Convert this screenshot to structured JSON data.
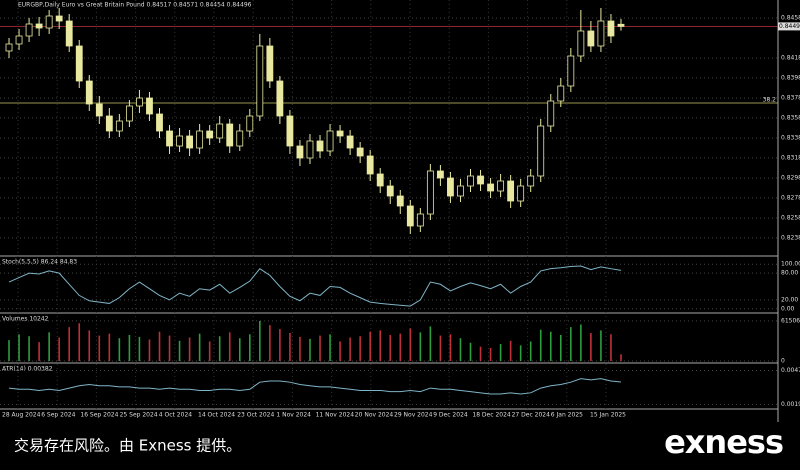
{
  "chart_data": {
    "type": "candlestick",
    "title": "EURGBP,Daily Euro vs Great Britain Pound 0.84517 0.84571 0.84454 0.84496",
    "candles": [
      [
        0.8425,
        0.8438,
        0.8418,
        0.8432
      ],
      [
        0.8432,
        0.8447,
        0.8426,
        0.844
      ],
      [
        0.844,
        0.8458,
        0.8434,
        0.8452
      ],
      [
        0.8452,
        0.8459,
        0.844,
        0.8448
      ],
      [
        0.8448,
        0.8466,
        0.8442,
        0.846
      ],
      [
        0.846,
        0.8468,
        0.8447,
        0.8455
      ],
      [
        0.8455,
        0.8462,
        0.8424,
        0.843
      ],
      [
        0.843,
        0.8436,
        0.8388,
        0.8395
      ],
      [
        0.8395,
        0.8401,
        0.8365,
        0.8372
      ],
      [
        0.8372,
        0.838,
        0.8352,
        0.836
      ],
      [
        0.836,
        0.8368,
        0.8338,
        0.8345
      ],
      [
        0.8345,
        0.8362,
        0.8339,
        0.8355
      ],
      [
        0.8355,
        0.8376,
        0.8349,
        0.837
      ],
      [
        0.837,
        0.8386,
        0.8363,
        0.8378
      ],
      [
        0.8378,
        0.8384,
        0.8355,
        0.8362
      ],
      [
        0.8362,
        0.8368,
        0.8338,
        0.8345
      ],
      [
        0.8345,
        0.8351,
        0.8322,
        0.833
      ],
      [
        0.833,
        0.8348,
        0.8324,
        0.834
      ],
      [
        0.834,
        0.8346,
        0.832,
        0.8328
      ],
      [
        0.8328,
        0.8352,
        0.8322,
        0.8345
      ],
      [
        0.8345,
        0.8351,
        0.8331,
        0.8338
      ],
      [
        0.8338,
        0.836,
        0.8333,
        0.8352
      ],
      [
        0.8352,
        0.8357,
        0.8323,
        0.833
      ],
      [
        0.833,
        0.8352,
        0.8325,
        0.8345
      ],
      [
        0.8345,
        0.8367,
        0.8339,
        0.836
      ],
      [
        0.836,
        0.8442,
        0.8355,
        0.843
      ],
      [
        0.843,
        0.8438,
        0.8388,
        0.8395
      ],
      [
        0.8395,
        0.84,
        0.8352,
        0.836
      ],
      [
        0.836,
        0.8366,
        0.8322,
        0.833
      ],
      [
        0.833,
        0.8336,
        0.831,
        0.8318
      ],
      [
        0.8318,
        0.8342,
        0.8312,
        0.8335
      ],
      [
        0.8335,
        0.8341,
        0.8318,
        0.8325
      ],
      [
        0.8325,
        0.8352,
        0.832,
        0.8345
      ],
      [
        0.8345,
        0.8351,
        0.8333,
        0.834
      ],
      [
        0.834,
        0.8346,
        0.8321,
        0.8328
      ],
      [
        0.8328,
        0.8334,
        0.8313,
        0.832
      ],
      [
        0.832,
        0.8326,
        0.8295,
        0.8302
      ],
      [
        0.8302,
        0.8308,
        0.8283,
        0.829
      ],
      [
        0.829,
        0.8296,
        0.8272,
        0.828
      ],
      [
        0.828,
        0.8286,
        0.8262,
        0.827
      ],
      [
        0.827,
        0.8276,
        0.8242,
        0.825
      ],
      [
        0.825,
        0.8268,
        0.8244,
        0.8262
      ],
      [
        0.8262,
        0.8312,
        0.8256,
        0.8305
      ],
      [
        0.8305,
        0.8311,
        0.829,
        0.8298
      ],
      [
        0.8298,
        0.8304,
        0.8273,
        0.828
      ],
      [
        0.828,
        0.8297,
        0.8274,
        0.829
      ],
      [
        0.829,
        0.8307,
        0.8284,
        0.83
      ],
      [
        0.83,
        0.8306,
        0.8285,
        0.8292
      ],
      [
        0.8292,
        0.8298,
        0.8278,
        0.8285
      ],
      [
        0.8285,
        0.8302,
        0.8279,
        0.8295
      ],
      [
        0.8295,
        0.8301,
        0.8268,
        0.8275
      ],
      [
        0.8275,
        0.8297,
        0.8269,
        0.829
      ],
      [
        0.829,
        0.8307,
        0.8284,
        0.83
      ],
      [
        0.83,
        0.8357,
        0.8294,
        0.835
      ],
      [
        0.835,
        0.8382,
        0.8344,
        0.8375
      ],
      [
        0.8375,
        0.8398,
        0.8369,
        0.839
      ],
      [
        0.839,
        0.8428,
        0.8384,
        0.842
      ],
      [
        0.842,
        0.8466,
        0.8414,
        0.8445
      ],
      [
        0.8445,
        0.8455,
        0.8424,
        0.843
      ],
      [
        0.843,
        0.8468,
        0.8424,
        0.8455
      ],
      [
        0.8455,
        0.8462,
        0.8433,
        0.844
      ],
      [
        0.84517,
        0.84571,
        0.84454,
        0.84496
      ]
    ],
    "ylim": [
      0.8221,
      0.8476
    ],
    "yticks": [
      {
        "value": 0.8458,
        "label": "0.84580"
      },
      {
        "value": 0.8418,
        "label": "0.84180"
      },
      {
        "value": 0.8398,
        "label": "0.83980"
      },
      {
        "value": 0.8378,
        "label": "0.83780"
      },
      {
        "value": 0.8358,
        "label": "0.83580"
      },
      {
        "value": 0.8338,
        "label": "0.83380"
      },
      {
        "value": 0.8318,
        "label": "0.83180"
      },
      {
        "value": 0.8298,
        "label": "0.82980"
      },
      {
        "value": 0.8278,
        "label": "0.82780"
      },
      {
        "value": 0.8258,
        "label": "0.82580"
      },
      {
        "value": 0.8238,
        "label": "0.82380"
      }
    ],
    "current_price": 0.84496,
    "level": {
      "price": 0.8373,
      "name": "38.2"
    },
    "dates": [
      "28 Aug 2024",
      "6 Sep 2024",
      "16 Sep 2024",
      "25 Sep 2024",
      "4 Oct 2024",
      "14 Oct 2024",
      "23 Oct 2024",
      "1 Nov 2024",
      "11 Nov 2024",
      "20 Nov 2024",
      "29 Nov 2024",
      "9 Dec 2024",
      "18 Dec 2024",
      "27 Dec 2024",
      "6 Jan 2025",
      "15 Jan 2025"
    ],
    "stochastic": {
      "label": "Stoch(5,5,5) 86.24 84.83",
      "ylim": [
        -5,
        105
      ],
      "yticks": [
        {
          "value": 100,
          "label": "100.00"
        },
        {
          "value": 80,
          "label": "80.00"
        },
        {
          "value": 20,
          "label": "20.00"
        },
        {
          "value": 0,
          "label": "0.00"
        }
      ],
      "values": [
        60,
        70,
        80,
        78,
        85,
        80,
        55,
        30,
        18,
        15,
        12,
        25,
        45,
        60,
        45,
        30,
        20,
        35,
        28,
        45,
        42,
        55,
        35,
        48,
        62,
        90,
        75,
        50,
        28,
        18,
        35,
        30,
        50,
        48,
        35,
        25,
        15,
        12,
        10,
        8,
        6,
        20,
        60,
        55,
        40,
        50,
        58,
        52,
        45,
        55,
        35,
        50,
        60,
        85,
        90,
        92,
        95,
        96,
        88,
        94,
        90,
        86.24
      ]
    },
    "volumes": {
      "label": "Volumes 10242",
      "ylim": [
        0,
        66000
      ],
      "yticks": [
        61506,
        0
      ],
      "values": [
        32000,
        41000,
        38000,
        29000,
        44000,
        36000,
        52000,
        58000,
        47000,
        39000,
        42000,
        35000,
        40000,
        37000,
        33000,
        45000,
        39000,
        31000,
        36000,
        42000,
        30000,
        38000,
        44000,
        35000,
        41000,
        61506,
        55000,
        49000,
        43000,
        37000,
        34000,
        39000,
        41000,
        30000,
        36000,
        38000,
        45000,
        47000,
        40000,
        42000,
        50000,
        44000,
        53000,
        39000,
        41000,
        35000,
        28000,
        22000,
        20000,
        26000,
        31000,
        24000,
        30000,
        48000,
        45000,
        40000,
        52000,
        56000,
        43000,
        47000,
        41000,
        10242
      ]
    },
    "atr": {
      "label": "ATR(14) 0.00382",
      "ylim": [
        0.0017,
        0.005
      ],
      "yticks": [
        0.00479,
        0.00192
      ],
      "values": [
        0.0033,
        0.0032,
        0.0032,
        0.0031,
        0.0032,
        0.0031,
        0.0033,
        0.0035,
        0.0036,
        0.0035,
        0.0035,
        0.0034,
        0.0034,
        0.0033,
        0.0033,
        0.0032,
        0.0033,
        0.0032,
        0.0032,
        0.0031,
        0.0031,
        0.0032,
        0.0032,
        0.0031,
        0.0032,
        0.0038,
        0.0039,
        0.0039,
        0.0038,
        0.0036,
        0.0035,
        0.0034,
        0.0034,
        0.0033,
        0.0032,
        0.0031,
        0.0031,
        0.0031,
        0.003,
        0.003,
        0.0031,
        0.003,
        0.0033,
        0.0032,
        0.0032,
        0.0031,
        0.003,
        0.0029,
        0.0028,
        0.0028,
        0.0029,
        0.0028,
        0.0029,
        0.0033,
        0.0035,
        0.0036,
        0.0038,
        0.0041,
        0.004,
        0.0041,
        0.0039,
        0.00382
      ]
    }
  },
  "footer": {
    "disclaimer": "交易存在风险。由 Exness 提供。",
    "brand": "exness"
  }
}
